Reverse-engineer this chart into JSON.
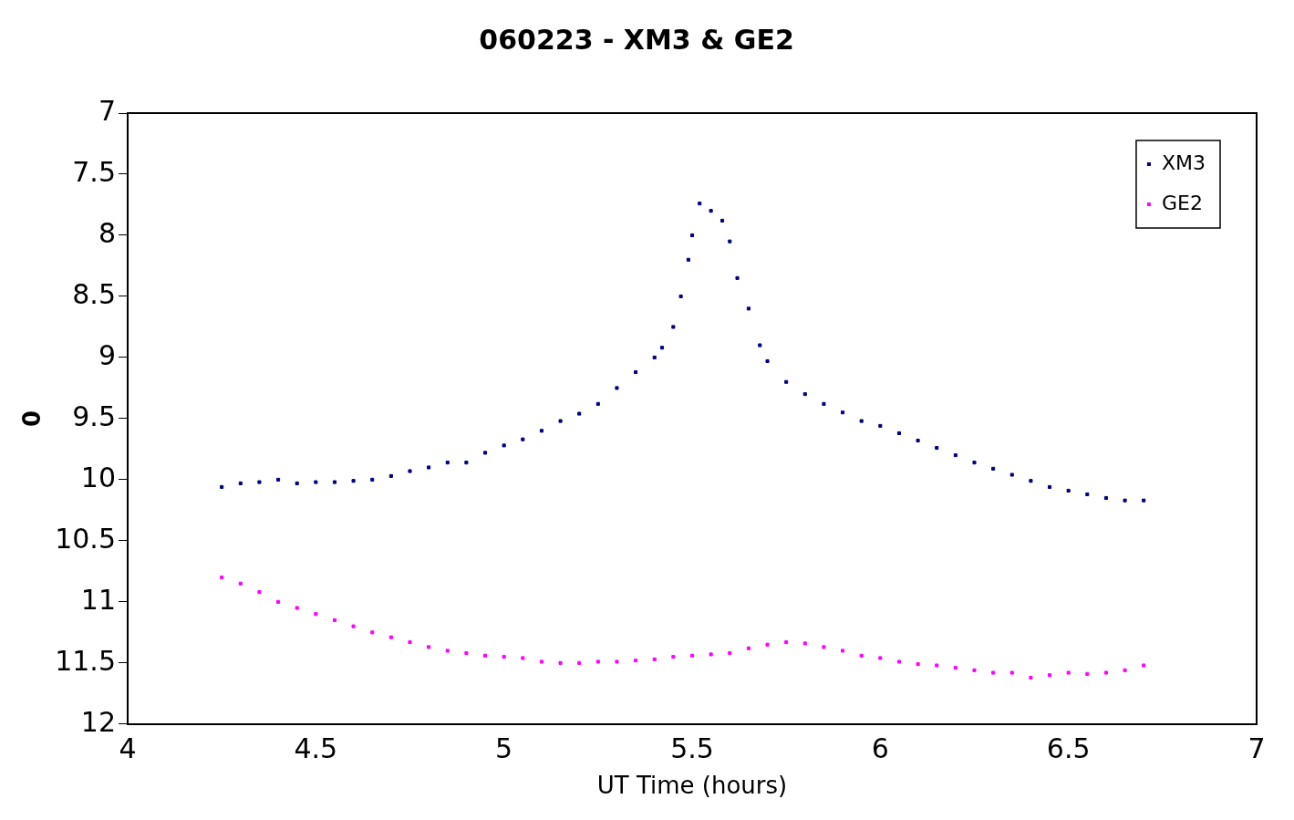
{
  "chart_data": {
    "type": "scatter",
    "title": "060223 - XM3 & GE2",
    "xlabel": "UT Time (hours)",
    "ylabel": "0",
    "xlim": [
      4,
      7
    ],
    "xticks": [
      4,
      4.5,
      5,
      5.5,
      6,
      6.5,
      7
    ],
    "ylim": [
      12,
      7
    ],
    "yticks": [
      7,
      7.5,
      8,
      8.5,
      9,
      9.5,
      10,
      10.5,
      11,
      11.5,
      12
    ],
    "grid": false,
    "legend": "top right",
    "marker": "square",
    "series": [
      {
        "name": "XM3",
        "color": "#000080",
        "x": [
          4.25,
          4.3,
          4.35,
          4.4,
          4.45,
          4.5,
          4.55,
          4.6,
          4.65,
          4.7,
          4.75,
          4.8,
          4.85,
          4.9,
          4.95,
          5,
          5.05,
          5.1,
          5.15,
          5.2,
          5.25,
          5.3,
          5.35,
          5.4,
          5.42,
          5.45,
          5.47,
          5.49,
          5.5,
          5.52,
          5.55,
          5.58,
          5.6,
          5.62,
          5.65,
          5.68,
          5.7,
          5.75,
          5.8,
          5.85,
          5.9,
          5.95,
          6,
          6.05,
          6.1,
          6.15,
          6.2,
          6.25,
          6.3,
          6.35,
          6.4,
          6.45,
          6.5,
          6.55,
          6.6,
          6.65,
          6.7
        ],
        "values": [
          10.06,
          10.03,
          10.02,
          10,
          10.03,
          10.02,
          10.02,
          10.01,
          10,
          9.97,
          9.93,
          9.9,
          9.86,
          9.86,
          9.78,
          9.72,
          9.67,
          9.6,
          9.52,
          9.46,
          9.38,
          9.25,
          9.12,
          9.0,
          8.92,
          8.75,
          8.5,
          8.2,
          8,
          7.74,
          7.8,
          7.88,
          8.05,
          8.35,
          8.6,
          8.9,
          9.03,
          9.2,
          9.3,
          9.38,
          9.45,
          9.52,
          9.56,
          9.62,
          9.68,
          9.74,
          9.8,
          9.86,
          9.91,
          9.96,
          10.01,
          10.06,
          10.09,
          10.12,
          10.15,
          10.17,
          10.17
        ]
      },
      {
        "name": "GE2",
        "color": "#ff00ff",
        "x": [
          4.25,
          4.3,
          4.35,
          4.4,
          4.45,
          4.5,
          4.55,
          4.6,
          4.65,
          4.7,
          4.75,
          4.8,
          4.85,
          4.9,
          4.95,
          5,
          5.05,
          5.1,
          5.15,
          5.2,
          5.25,
          5.3,
          5.35,
          5.4,
          5.45,
          5.5,
          5.55,
          5.6,
          5.65,
          5.7,
          5.75,
          5.8,
          5.85,
          5.9,
          5.95,
          6,
          6.05,
          6.1,
          6.15,
          6.2,
          6.25,
          6.3,
          6.35,
          6.4,
          6.45,
          6.5,
          6.55,
          6.6,
          6.65,
          6.7
        ],
        "values": [
          10.8,
          10.85,
          10.92,
          11,
          11.05,
          11.1,
          11.15,
          11.2,
          11.25,
          11.29,
          11.33,
          11.37,
          11.4,
          11.42,
          11.44,
          11.45,
          11.46,
          11.49,
          11.5,
          11.5,
          11.49,
          11.49,
          11.48,
          11.47,
          11.45,
          11.44,
          11.43,
          11.42,
          11.38,
          11.35,
          11.33,
          11.34,
          11.37,
          11.4,
          11.44,
          11.46,
          11.49,
          11.51,
          11.52,
          11.54,
          11.56,
          11.58,
          11.58,
          11.62,
          11.6,
          11.58,
          11.59,
          11.58,
          11.56,
          11.52
        ]
      }
    ]
  }
}
